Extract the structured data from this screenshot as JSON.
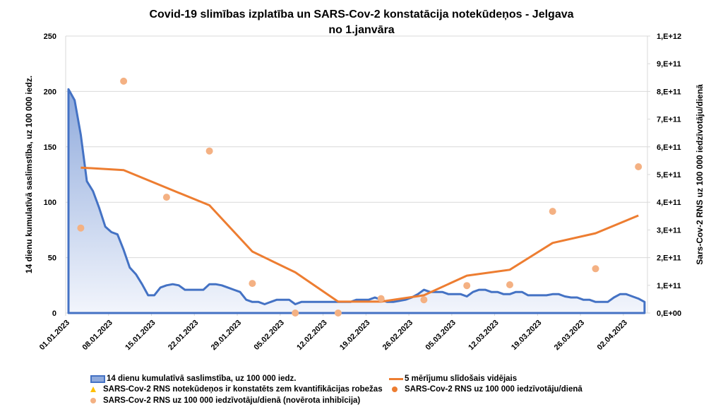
{
  "colors": {
    "incidence_line": "#4472c4",
    "incidence_fill_top": "#8faadc",
    "incidence_fill_bottom": "#f2f5fc",
    "moving_avg": "#ed7d31",
    "below_quant": "#ffc000",
    "rns": "#ed7d31",
    "rns_inhibition": "#f4b183",
    "grid": "#d9d9d9"
  },
  "chart_data": {
    "type": "area",
    "title_line1": "Covid-19 slimības izplatība un SARS-Cov-2 konstatācija notekūdeņos - Jelgava",
    "title_line2": "no 1.janvāra",
    "ylabel": "14 dienu kumulatīvā saslimstība, uz 100 000 iedz.",
    "y2label": "Sars-Cov-2 RNS uz 100 000 iedzīvotāju/dienā",
    "ylim": [
      0,
      250
    ],
    "y2lim": [
      0,
      1000000000000
    ],
    "grid": true,
    "legend_position": "bottom",
    "x_start_date": "01.01.2023",
    "x_range_days": [
      0,
      95
    ],
    "x_tick_labels": [
      "01.01.2023",
      "08.01.2023",
      "15.01.2023",
      "22.01.2023",
      "29.01.2023",
      "05.02.2023",
      "12.02.2023",
      "19.02.2023",
      "26.02.2023",
      "05.03.2023",
      "12.03.2023",
      "19.03.2023",
      "26.03.2023",
      "02.04.2023"
    ],
    "y_tick_labels": [
      "0",
      "50",
      "100",
      "150",
      "200",
      "250"
    ],
    "y2_tick_labels": [
      "0,E+00",
      "1,E+11",
      "2,E+11",
      "3,E+11",
      "4,E+11",
      "5,E+11",
      "6,E+11",
      "7,E+11",
      "8,E+11",
      "9,E+11",
      "1,E+12"
    ],
    "series": [
      {
        "name": "14 dienu kumulatīvā saslimstība, uz 100 000 iedz.",
        "type": "area",
        "axis": "left",
        "x_day_offset": 0,
        "values": [
          202,
          192,
          161,
          119,
          110,
          95,
          78,
          73,
          71,
          57,
          41,
          35,
          26,
          16,
          16,
          23,
          25,
          26,
          25,
          21,
          21,
          21,
          21,
          26,
          26,
          25,
          23,
          21,
          19,
          12,
          10,
          10,
          8,
          10,
          12,
          12,
          12,
          8,
          10,
          10,
          10,
          10,
          10,
          10,
          10,
          10,
          10,
          12,
          12,
          12,
          14,
          12,
          10,
          10,
          11,
          12,
          14,
          17,
          21,
          19,
          19,
          19,
          17,
          17,
          17,
          15,
          19,
          21,
          21,
          19,
          19,
          17,
          17,
          19,
          19,
          16,
          16,
          16,
          16,
          17,
          17,
          15,
          14,
          14,
          12,
          12,
          10,
          10,
          10,
          14,
          17,
          17,
          15,
          13,
          10
        ]
      },
      {
        "name": "5 mērījumu slīdošais vidējais",
        "type": "line",
        "axis": "right",
        "x_days": [
          2,
          9,
          16,
          23,
          30,
          37,
          44,
          51,
          58,
          65,
          72,
          79,
          86,
          93
        ],
        "values": [
          525000000000,
          516000000000,
          452000000000,
          389000000000,
          222000000000,
          147000000000,
          41000000000,
          41000000000,
          64000000000,
          135000000000,
          156000000000,
          253000000000,
          288000000000,
          352000000000
        ]
      },
      {
        "name": "SARS-Cov-2 RNS notekūdeņos ir konstatēts zem kvantifikācijas robežas",
        "type": "scatter",
        "axis": "right",
        "x_days": [],
        "values": []
      },
      {
        "name": "SARS-Cov-2 RNS uz 100 000 iedzīvotāju/dienā",
        "type": "scatter",
        "axis": "right",
        "x_days": [],
        "values": []
      },
      {
        "name": "SARS-Cov-2 RNS uz 100 000 iedzīvotāju/dienā (novērota inhibīcija)",
        "type": "scatter",
        "axis": "right",
        "x_days": [
          2,
          9,
          16,
          23,
          30,
          37,
          44,
          51,
          58,
          65,
          72,
          79,
          86,
          93
        ],
        "values": [
          307000000000,
          837000000000,
          418000000000,
          585000000000,
          107000000000,
          0,
          0,
          52000000000,
          48000000000,
          99000000000,
          102000000000,
          367000000000,
          160000000000,
          528000000000
        ]
      }
    ]
  },
  "legend": {
    "item1": "14 dienu kumulatīvā saslimstība, uz 100 000 iedz.",
    "item2": "5 mērījumu slīdošais vidējais",
    "item3": "SARS-Cov-2 RNS notekūdeņos ir konstatēts zem kvantifikācijas robežas",
    "item4": "SARS-Cov-2 RNS uz 100 000 iedzīvotāju/dienā",
    "item5": "SARS-Cov-2 RNS uz 100 000 iedzīvotāju/dienā (novērota inhibīcija)"
  }
}
